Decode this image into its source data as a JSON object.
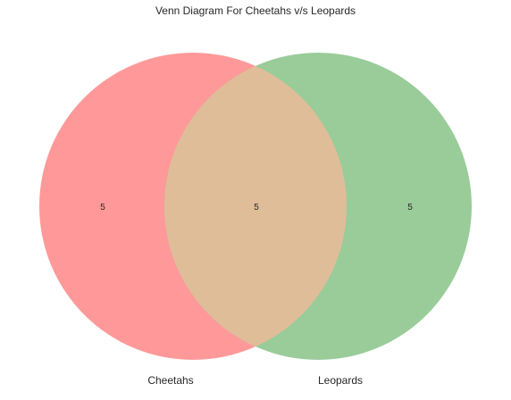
{
  "title": "Venn Diagram For Cheetahs v/s Leopards",
  "sets": [
    {
      "name": "Cheetahs",
      "color": "#ff9999"
    },
    {
      "name": "Leopards",
      "color": "#99cc99"
    }
  ],
  "regions": {
    "cheetahs_only": "5",
    "both": "5",
    "leopards_only": "5"
  },
  "overlap_color": "#e0bd99"
}
